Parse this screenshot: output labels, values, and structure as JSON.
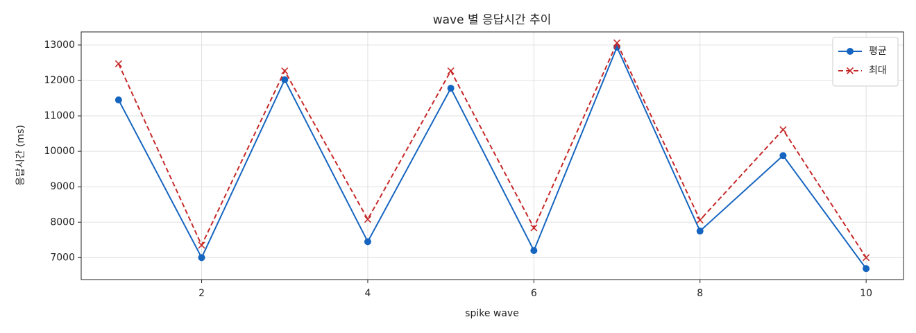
{
  "chart_data": {
    "type": "line",
    "title": "wave 별 응답시간 추이",
    "x_label": "spike wave",
    "y_label": "응답시간 (ms)",
    "x": [
      1,
      2,
      3,
      4,
      5,
      6,
      7,
      8,
      9,
      10
    ],
    "series": [
      {
        "name": "평균",
        "color": "#1565c0",
        "marker": "o",
        "linestyle": "solid",
        "values": [
          11450,
          7000,
          12020,
          7450,
          11780,
          7200,
          12940,
          7750,
          9880,
          6690
        ]
      },
      {
        "name": "최대",
        "color": "#c62828",
        "marker": "x",
        "linestyle": "dashed",
        "values": [
          12470,
          7350,
          12270,
          8080,
          12270,
          7840,
          13060,
          8060,
          10610,
          7000
        ]
      }
    ],
    "xlim": [
      0.55,
      10.45
    ],
    "xticks": [
      2,
      4,
      6,
      8,
      10
    ],
    "ylim": [
      6380,
      13370
    ],
    "yticks": [
      7000,
      8000,
      9000,
      10000,
      11000,
      12000,
      13000
    ],
    "grid": true,
    "legend": "upper right"
  }
}
